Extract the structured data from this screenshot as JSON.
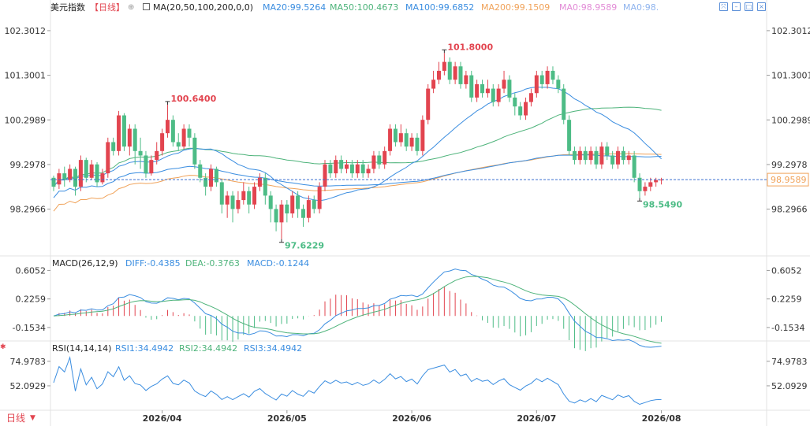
{
  "header": {
    "symbol": "美元指数",
    "period": "【日线】",
    "ma_label": "MA(20,50,100,200,0,0)",
    "ma_values": [
      {
        "text": "MA20:99.5264",
        "color": "#3a8de0"
      },
      {
        "text": "MA50:100.4673",
        "color": "#4db37a"
      },
      {
        "text": "MA100:99.6852",
        "color": "#3a8de0"
      },
      {
        "text": "MA200:99.1509",
        "color": "#f0a259"
      },
      {
        "text": "MA0:98.9589",
        "color": "#e28bd6"
      },
      {
        "text": "MA0:98.",
        "color": "#8fb4ee"
      }
    ]
  },
  "toolbar": {
    "buttons": [
      "settings",
      "collapse",
      "expand",
      "close"
    ]
  },
  "macd": {
    "label": "MACD(26,12,9)",
    "diff": "DIFF:-0.4385",
    "dea": "DEA:-0.3763",
    "macd": "MACD:-0.1244"
  },
  "rsi": {
    "label": "RSI(14,14,14)",
    "rsi1": "RSI1:34.4942",
    "rsi2": "RSI2:34.4942",
    "rsi3": "RSI3:34.4942"
  },
  "footer": {
    "period_switch": "日线"
  },
  "colors": {
    "up": "#e2444f",
    "down": "#4dbc86",
    "ma20": "#3a8de0",
    "ma50": "#4db37a",
    "ma100": "#3a8de0",
    "ma200": "#f0a259",
    "current": "#f0a259"
  },
  "chart_data": {
    "type": "candlestick",
    "price_axis": {
      "ticks": [
        102.3012,
        101.3001,
        100.2989,
        99.2978,
        98.2966
      ],
      "range": [
        97.3,
        102.6
      ]
    },
    "current_price": 98.9589,
    "annotations": [
      {
        "label": "100.6400",
        "value": 100.64,
        "type": "high"
      },
      {
        "label": "97.6229",
        "value": 97.6229,
        "type": "low"
      },
      {
        "label": "101.8000",
        "value": 101.8,
        "type": "high"
      },
      {
        "label": "98.5490",
        "value": 98.549,
        "type": "low"
      }
    ],
    "x_labels": [
      "2026/04",
      "2026/05",
      "2026/06",
      "2026/07",
      "2026/08"
    ],
    "x_label_index": [
      20,
      43,
      66,
      89,
      112
    ],
    "candles": [
      [
        99.0,
        98.8,
        99.05,
        98.7
      ],
      [
        98.85,
        99.1,
        99.2,
        98.75
      ],
      [
        99.1,
        98.95,
        99.25,
        98.8
      ],
      [
        98.95,
        99.2,
        99.3,
        98.9
      ],
      [
        99.2,
        98.8,
        99.25,
        98.6
      ],
      [
        98.8,
        99.4,
        99.5,
        98.7
      ],
      [
        99.4,
        99.0,
        99.45,
        98.9
      ],
      [
        99.0,
        99.3,
        99.4,
        98.95
      ],
      [
        99.3,
        98.9,
        99.35,
        98.8
      ],
      [
        98.9,
        99.1,
        99.2,
        98.85
      ],
      [
        99.1,
        99.8,
        99.9,
        99.0
      ],
      [
        99.8,
        99.6,
        99.9,
        99.5
      ],
      [
        99.6,
        100.4,
        100.5,
        99.5
      ],
      [
        100.4,
        99.7,
        100.45,
        99.6
      ],
      [
        99.7,
        100.1,
        100.2,
        99.5
      ],
      [
        100.1,
        99.6,
        100.2,
        99.3
      ],
      [
        99.6,
        99.5,
        99.9,
        99.2
      ],
      [
        99.5,
        99.1,
        99.6,
        99.0
      ],
      [
        99.1,
        99.4,
        99.5,
        99.05
      ],
      [
        99.4,
        99.6,
        99.8,
        99.3
      ],
      [
        99.6,
        100.0,
        100.1,
        99.5
      ],
      [
        100.0,
        100.3,
        100.64,
        99.9
      ],
      [
        100.3,
        99.8,
        100.4,
        99.7
      ],
      [
        99.8,
        99.7,
        100.0,
        99.6
      ],
      [
        99.7,
        100.1,
        100.2,
        99.65
      ],
      [
        100.1,
        99.9,
        100.2,
        99.7
      ],
      [
        99.9,
        99.3,
        100.0,
        99.2
      ],
      [
        99.3,
        99.0,
        99.4,
        98.9
      ],
      [
        99.0,
        98.8,
        99.1,
        98.6
      ],
      [
        98.8,
        99.2,
        99.3,
        98.7
      ],
      [
        99.2,
        98.9,
        99.25,
        98.8
      ],
      [
        98.9,
        98.4,
        98.95,
        98.2
      ],
      [
        98.4,
        98.6,
        98.7,
        98.1
      ],
      [
        98.6,
        98.3,
        98.7,
        98.0
      ],
      [
        98.3,
        98.5,
        98.7,
        98.2
      ],
      [
        98.5,
        98.7,
        98.9,
        98.4
      ],
      [
        98.7,
        98.4,
        98.8,
        98.2
      ],
      [
        98.4,
        98.8,
        98.9,
        98.3
      ],
      [
        98.8,
        99.0,
        99.1,
        98.7
      ],
      [
        99.0,
        98.6,
        99.1,
        98.4
      ],
      [
        98.6,
        98.3,
        98.7,
        98.0
      ],
      [
        98.3,
        98.0,
        98.4,
        97.8
      ],
      [
        98.0,
        98.4,
        98.5,
        97.62
      ],
      [
        98.4,
        98.2,
        98.5,
        98.0
      ],
      [
        98.2,
        98.6,
        98.7,
        98.1
      ],
      [
        98.6,
        98.3,
        98.7,
        98.1
      ],
      [
        98.3,
        98.1,
        98.4,
        97.9
      ],
      [
        98.1,
        98.5,
        98.6,
        98.0
      ],
      [
        98.5,
        98.3,
        98.6,
        98.2
      ],
      [
        98.3,
        98.8,
        98.9,
        98.2
      ],
      [
        98.8,
        99.3,
        99.4,
        98.7
      ],
      [
        99.3,
        99.1,
        99.4,
        99.0
      ],
      [
        99.1,
        99.4,
        99.5,
        99.0
      ],
      [
        99.4,
        99.2,
        99.5,
        99.1
      ],
      [
        99.2,
        99.3,
        99.4,
        99.1
      ],
      [
        99.3,
        99.1,
        99.4,
        99.0
      ],
      [
        99.1,
        99.3,
        99.4,
        99.0
      ],
      [
        99.3,
        99.1,
        99.4,
        99.0
      ],
      [
        99.1,
        99.2,
        99.3,
        99.0
      ],
      [
        99.2,
        99.5,
        99.6,
        99.1
      ],
      [
        99.5,
        99.3,
        99.6,
        99.2
      ],
      [
        99.3,
        99.6,
        99.7,
        99.2
      ],
      [
        99.6,
        100.1,
        100.2,
        99.5
      ],
      [
        100.1,
        99.8,
        100.2,
        99.7
      ],
      [
        99.8,
        100.0,
        100.2,
        99.7
      ],
      [
        100.0,
        99.7,
        100.1,
        99.6
      ],
      [
        99.7,
        99.9,
        100.0,
        99.6
      ],
      [
        99.9,
        99.6,
        100.0,
        99.5
      ],
      [
        99.6,
        100.3,
        100.4,
        99.5
      ],
      [
        100.3,
        101.0,
        101.1,
        100.2
      ],
      [
        101.0,
        101.2,
        101.4,
        100.9
      ],
      [
        101.2,
        101.4,
        101.6,
        101.1
      ],
      [
        101.4,
        101.6,
        101.8,
        101.3
      ],
      [
        101.6,
        101.2,
        101.7,
        101.1
      ],
      [
        101.2,
        101.5,
        101.6,
        101.1
      ],
      [
        101.5,
        101.1,
        101.6,
        101.0
      ],
      [
        101.1,
        101.3,
        101.4,
        101.0
      ],
      [
        101.3,
        100.8,
        101.4,
        100.7
      ],
      [
        100.8,
        101.1,
        101.2,
        100.7
      ],
      [
        101.1,
        100.9,
        101.2,
        100.8
      ],
      [
        100.9,
        101.0,
        101.2,
        100.8
      ],
      [
        101.0,
        100.7,
        101.1,
        100.6
      ],
      [
        100.7,
        101.0,
        101.1,
        100.6
      ],
      [
        101.0,
        101.2,
        101.4,
        100.9
      ],
      [
        101.2,
        100.8,
        101.3,
        100.7
      ],
      [
        100.8,
        100.6,
        100.9,
        100.4
      ],
      [
        100.6,
        100.4,
        100.7,
        100.3
      ],
      [
        100.4,
        100.7,
        100.8,
        100.3
      ],
      [
        100.7,
        100.9,
        101.0,
        100.6
      ],
      [
        100.9,
        101.3,
        101.4,
        100.8
      ],
      [
        101.3,
        101.1,
        101.4,
        101.0
      ],
      [
        101.1,
        101.4,
        101.5,
        101.0
      ],
      [
        101.4,
        101.2,
        101.5,
        101.1
      ],
      [
        101.2,
        101.0,
        101.3,
        100.9
      ],
      [
        101.0,
        100.3,
        101.1,
        100.2
      ],
      [
        100.3,
        99.6,
        100.4,
        99.5
      ],
      [
        99.6,
        99.4,
        99.7,
        99.3
      ],
      [
        99.4,
        99.6,
        99.7,
        99.3
      ],
      [
        99.6,
        99.4,
        99.7,
        99.3
      ],
      [
        99.4,
        99.6,
        99.7,
        99.3
      ],
      [
        99.6,
        99.3,
        99.7,
        99.2
      ],
      [
        99.3,
        99.7,
        99.8,
        99.2
      ],
      [
        99.7,
        99.5,
        99.8,
        99.4
      ],
      [
        99.5,
        99.3,
        99.6,
        99.2
      ],
      [
        99.3,
        99.6,
        99.7,
        99.2
      ],
      [
        99.6,
        99.4,
        99.7,
        99.3
      ],
      [
        99.4,
        99.5,
        99.6,
        99.3
      ],
      [
        99.5,
        99.0,
        99.6,
        98.9
      ],
      [
        99.0,
        98.7,
        99.1,
        98.55
      ],
      [
        98.7,
        98.8,
        98.9,
        98.6
      ],
      [
        98.8,
        98.9,
        99.0,
        98.7
      ],
      [
        98.9,
        98.95,
        99.0,
        98.8
      ],
      [
        98.95,
        98.9589,
        99.0,
        98.85
      ]
    ]
  }
}
